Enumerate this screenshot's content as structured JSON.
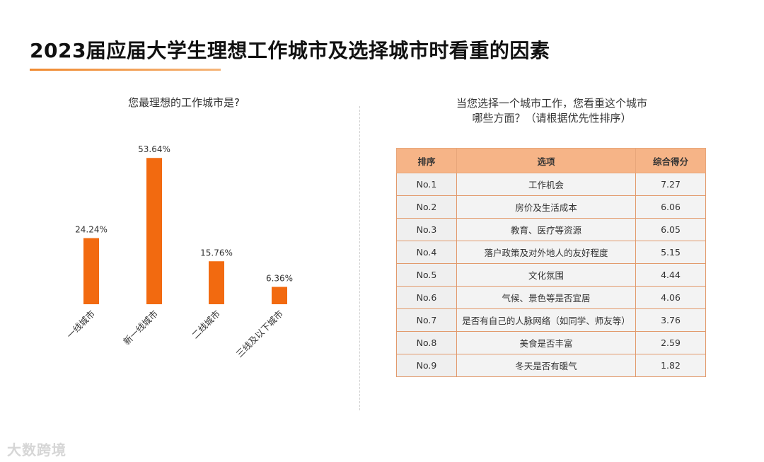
{
  "title": "2023届应届大学生理想工作城市及选择城市时看重的因素",
  "left_question": "您最理想的工作城市是?",
  "right_question_line1": "当您选择一个城市工作，您看重这个城市",
  "right_question_line2": "哪些方面？（请根据优先性排序）",
  "colors": {
    "bar": "#f26a10",
    "accent": "#f08a30",
    "header_bg": "#f6b487",
    "border": "#e29a6c"
  },
  "chart_data": {
    "type": "bar",
    "title": "您最理想的工作城市是?",
    "categories": [
      "一线城市",
      "新一线城市",
      "二线城市",
      "三线及以下城市"
    ],
    "values": [
      24.24,
      53.64,
      15.76,
      6.36
    ],
    "data_labels": [
      "24.24%",
      "53.64%",
      "15.76%",
      "6.36%"
    ],
    "unit": "%",
    "ylim": [
      0,
      55
    ],
    "grid": false,
    "legend": "none"
  },
  "table": {
    "headers": [
      "排序",
      "选项",
      "综合得分"
    ],
    "rows": [
      {
        "rank": "No.1",
        "option": "工作机会",
        "score": "7.27"
      },
      {
        "rank": "No.2",
        "option": "房价及生活成本",
        "score": "6.06"
      },
      {
        "rank": "No.3",
        "option": "教育、医疗等资源",
        "score": "6.05"
      },
      {
        "rank": "No.4",
        "option": "落户政策及对外地人的友好程度",
        "score": "5.15"
      },
      {
        "rank": "No.5",
        "option": "文化氛围",
        "score": "4.44"
      },
      {
        "rank": "No.6",
        "option": "气候、景色等是否宜居",
        "score": "4.06"
      },
      {
        "rank": "No.7",
        "option": "是否有自己的人脉网络（如同学、师友等）",
        "score": "3.76"
      },
      {
        "rank": "No.8",
        "option": "美食是否丰富",
        "score": "2.59"
      },
      {
        "rank": "No.9",
        "option": "冬天是否有暖气",
        "score": "1.82"
      }
    ]
  },
  "watermark": "大数跨境"
}
